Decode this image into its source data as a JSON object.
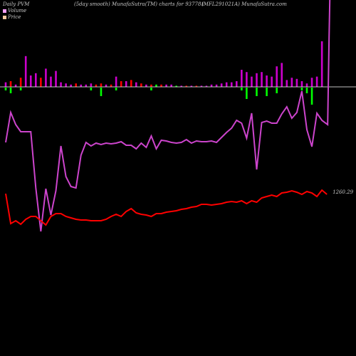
{
  "header": {
    "left": "Daily PVM",
    "middle": "(5day smooth) MunafaSutra(TM) charts for 937781",
    "right": "(MFL291021A) MunafaSutra.com"
  },
  "legend": [
    {
      "label": "Volume",
      "color": "#ffa0ff"
    },
    {
      "label": "Price",
      "color": "#ffc8a0"
    }
  ],
  "colors": {
    "volume_up": "#cc00cc",
    "volume_down": "#ff0000",
    "volume_green": "#00ff00",
    "pvm_line": "#cc44cc",
    "price_line": "#ff0000",
    "baseline": "#ffffff"
  },
  "chart_data": {
    "type": "line",
    "price_label": "1260.29",
    "x": [
      1,
      2,
      3,
      4,
      5,
      6,
      7,
      8,
      9,
      10,
      11,
      12,
      13,
      14,
      15,
      16,
      17,
      18,
      19,
      20,
      21,
      22,
      23,
      24,
      25,
      26,
      27,
      28,
      29,
      30,
      31,
      32,
      33,
      34,
      35,
      36,
      37,
      38,
      39,
      40,
      41,
      42,
      43,
      44,
      45,
      46,
      47,
      48,
      49,
      50,
      51,
      52,
      53,
      54,
      55,
      56,
      57,
      58,
      59,
      60,
      61,
      62,
      63,
      64
    ],
    "volume": [
      {
        "v": 4,
        "d": "up"
      },
      {
        "v": 5,
        "d": "down"
      },
      {
        "v": 2,
        "d": "up"
      },
      {
        "v": 8,
        "d": "down"
      },
      {
        "v": 27,
        "d": "up"
      },
      {
        "v": 10,
        "d": "up"
      },
      {
        "v": 12,
        "d": "up"
      },
      {
        "v": 8,
        "d": "down"
      },
      {
        "v": 16,
        "d": "up"
      },
      {
        "v": 9,
        "d": "up"
      },
      {
        "v": 14,
        "d": "up"
      },
      {
        "v": 4,
        "d": "up"
      },
      {
        "v": 3,
        "d": "up"
      },
      {
        "v": 2,
        "d": "up"
      },
      {
        "v": 3,
        "d": "down"
      },
      {
        "v": 2,
        "d": "up"
      },
      {
        "v": 2,
        "d": "up"
      },
      {
        "v": 3,
        "d": "up"
      },
      {
        "v": 2,
        "d": "down"
      },
      {
        "v": 3,
        "d": "down"
      },
      {
        "v": 2,
        "d": "up"
      },
      {
        "v": 2,
        "d": "down"
      },
      {
        "v": 9,
        "d": "up"
      },
      {
        "v": 5,
        "d": "down"
      },
      {
        "v": 5,
        "d": "up"
      },
      {
        "v": 6,
        "d": "down"
      },
      {
        "v": 4,
        "d": "up"
      },
      {
        "v": 3,
        "d": "down"
      },
      {
        "v": 2,
        "d": "up"
      },
      {
        "v": 2,
        "d": "down"
      },
      {
        "v": 2,
        "d": "green"
      },
      {
        "v": 2,
        "d": "down"
      },
      {
        "v": 2,
        "d": "up"
      },
      {
        "v": 2,
        "d": "up"
      },
      {
        "v": 1,
        "d": "green"
      },
      {
        "v": 1,
        "d": "up"
      },
      {
        "v": 1,
        "d": "down"
      },
      {
        "v": 1,
        "d": "up"
      },
      {
        "v": 1,
        "d": "down"
      },
      {
        "v": 1,
        "d": "up"
      },
      {
        "v": 1,
        "d": "up"
      },
      {
        "v": 2,
        "d": "up"
      },
      {
        "v": 2,
        "d": "up"
      },
      {
        "v": 3,
        "d": "up"
      },
      {
        "v": 4,
        "d": "up"
      },
      {
        "v": 4,
        "d": "up"
      },
      {
        "v": 5,
        "d": "up"
      },
      {
        "v": 15,
        "d": "up"
      },
      {
        "v": 13,
        "d": "up"
      },
      {
        "v": 9,
        "d": "up"
      },
      {
        "v": 12,
        "d": "up"
      },
      {
        "v": 13,
        "d": "up"
      },
      {
        "v": 10,
        "d": "up"
      },
      {
        "v": 9,
        "d": "up"
      },
      {
        "v": 18,
        "d": "up"
      },
      {
        "v": 21,
        "d": "up"
      },
      {
        "v": 6,
        "d": "up"
      },
      {
        "v": 8,
        "d": "up"
      },
      {
        "v": 7,
        "d": "up"
      },
      {
        "v": 5,
        "d": "up"
      },
      {
        "v": 3,
        "d": "up"
      },
      {
        "v": 8,
        "d": "up"
      },
      {
        "v": 9,
        "d": "up"
      },
      {
        "v": 40,
        "d": "up"
      }
    ],
    "volume_green_extra": [
      {
        "i": 0,
        "v": 1
      },
      {
        "i": 1,
        "v": 2
      },
      {
        "i": 3,
        "v": 1
      },
      {
        "i": 17,
        "v": 1
      },
      {
        "i": 19,
        "v": 3
      },
      {
        "i": 22,
        "v": 1
      },
      {
        "i": 29,
        "v": 1
      },
      {
        "i": 47,
        "v": 1
      },
      {
        "i": 48,
        "v": 4
      },
      {
        "i": 50,
        "v": 3
      },
      {
        "i": 52,
        "v": 3
      },
      {
        "i": 54,
        "v": 2
      },
      {
        "i": 59,
        "v": 1
      },
      {
        "i": 60,
        "v": 2
      },
      {
        "i": 61,
        "v": 6
      }
    ],
    "pvm": [
      300,
      342,
      325,
      315,
      315,
      315,
      236,
      175,
      235,
      198,
      232,
      295,
      252,
      238,
      236,
      282,
      300,
      295,
      299,
      297,
      299,
      298,
      299,
      301,
      296,
      296,
      291,
      299,
      293,
      309,
      291,
      303,
      302,
      300,
      299,
      300,
      304,
      299,
      302,
      301,
      301,
      302,
      300,
      307,
      314,
      320,
      331,
      327,
      306,
      341,
      262,
      328,
      330,
      327,
      327,
      340,
      350,
      334,
      342,
      372,
      318,
      294,
      341,
      331
    ],
    "pvm_tail": [
      325,
      448
    ],
    "price": [
      300,
      258,
      262,
      257,
      264,
      268,
      268,
      262,
      256,
      268,
      272,
      272,
      268,
      266,
      264,
      263,
      263,
      262,
      262,
      262,
      264,
      268,
      271,
      268,
      275,
      279,
      273,
      271,
      270,
      268,
      272,
      272,
      274,
      275,
      276,
      278,
      279,
      281,
      282,
      285,
      285,
      284,
      285,
      286,
      288,
      289,
      288,
      290,
      286,
      290,
      288,
      294,
      296,
      298,
      296,
      301,
      302,
      304,
      302,
      299,
      303,
      301,
      296,
      305,
      299
    ]
  }
}
